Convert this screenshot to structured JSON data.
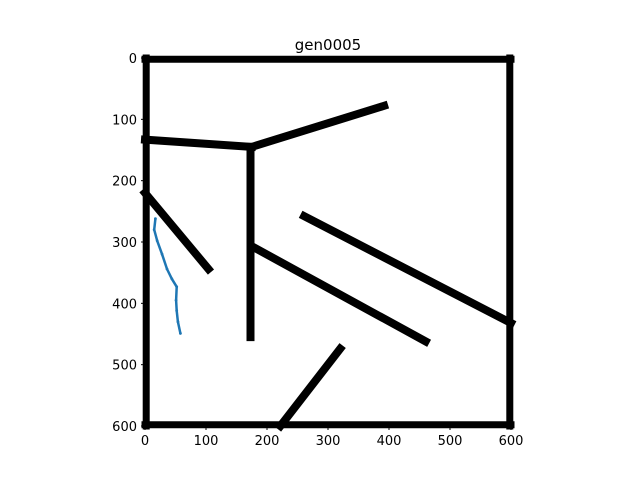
{
  "chart_data": {
    "type": "image",
    "title": "gen0005",
    "xlabel": "",
    "ylabel": "",
    "xlim": [
      0,
      600
    ],
    "ylim": [
      600,
      0
    ],
    "xticks": [
      0,
      100,
      200,
      300,
      400,
      500,
      600
    ],
    "yticks": [
      0,
      100,
      200,
      300,
      400,
      500,
      600
    ],
    "colors": {
      "walls": "#000000",
      "trajectory": "#1f77b4"
    },
    "walls": [
      {
        "name": "border-top",
        "points": [
          [
            0,
            2
          ],
          [
            600,
            2
          ]
        ]
      },
      {
        "name": "border-bottom",
        "points": [
          [
            0,
            598
          ],
          [
            600,
            598
          ]
        ]
      },
      {
        "name": "border-left",
        "points": [
          [
            2,
            0
          ],
          [
            2,
            600
          ]
        ]
      },
      {
        "name": "border-right",
        "points": [
          [
            598,
            0
          ],
          [
            598,
            600
          ]
        ]
      },
      {
        "name": "wall-left-horizontal",
        "points": [
          [
            0,
            133
          ],
          [
            175,
            145
          ]
        ]
      },
      {
        "name": "wall-upper-right",
        "points": [
          [
            175,
            145
          ],
          [
            392,
            78
          ]
        ]
      },
      {
        "name": "wall-vertical",
        "points": [
          [
            173,
            145
          ],
          [
            173,
            455
          ]
        ]
      },
      {
        "name": "wall-left-diagonal",
        "points": [
          [
            0,
            220
          ],
          [
            104,
            344
          ]
        ]
      },
      {
        "name": "wall-middle-diagonal",
        "points": [
          [
            177,
            308
          ],
          [
            460,
            462
          ]
        ]
      },
      {
        "name": "wall-right-diagonal",
        "points": [
          [
            261,
            258
          ],
          [
            600,
            432
          ]
        ]
      },
      {
        "name": "wall-bottom-diagonal",
        "points": [
          [
            222,
            600
          ],
          [
            320,
            474
          ]
        ]
      }
    ],
    "trajectory": [
      [
        17,
        262
      ],
      [
        15,
        280
      ],
      [
        20,
        298
      ],
      [
        28,
        320
      ],
      [
        36,
        344
      ],
      [
        44,
        360
      ],
      [
        52,
        373
      ],
      [
        51,
        395
      ],
      [
        52,
        412
      ],
      [
        54,
        430
      ],
      [
        58,
        449
      ]
    ]
  }
}
